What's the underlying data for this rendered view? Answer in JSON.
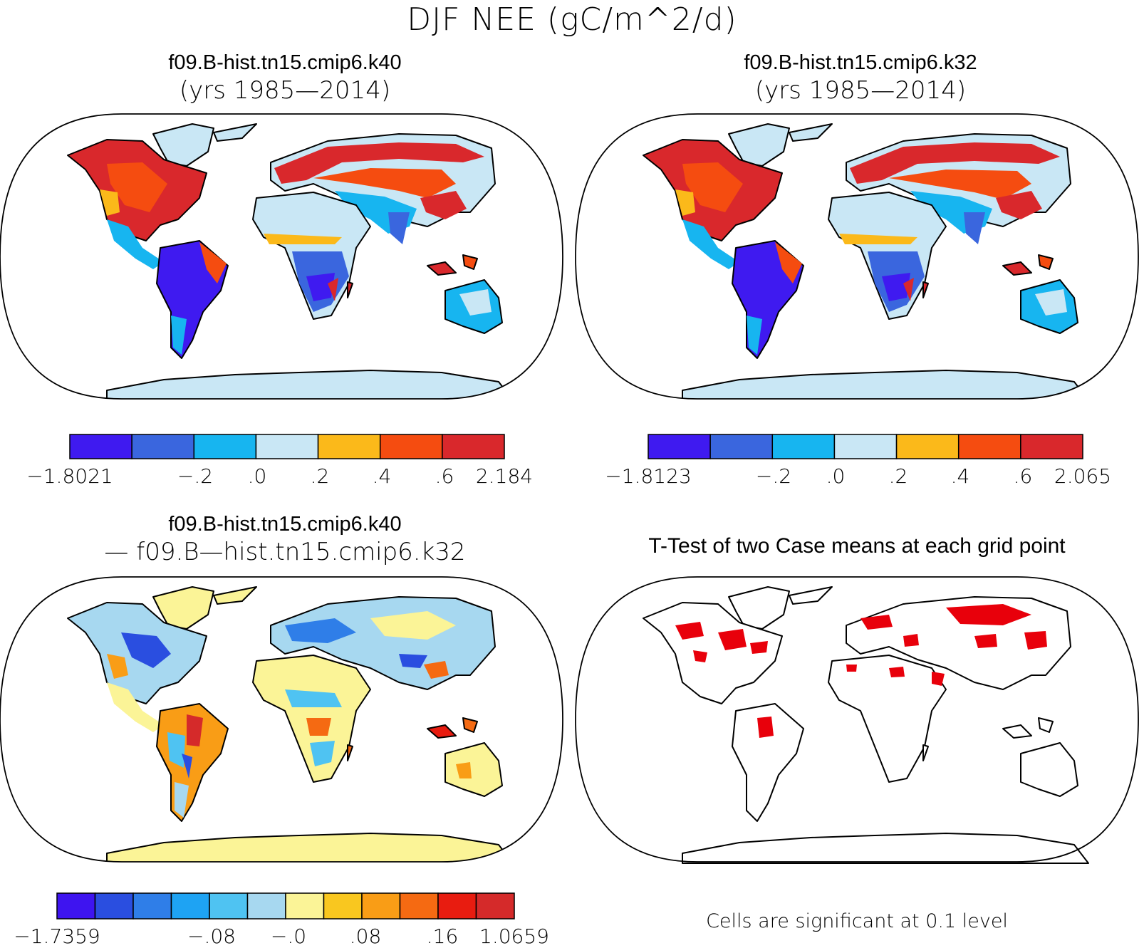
{
  "title": "DJF NEE (gC/m^2/d)",
  "panels": {
    "top_left": {
      "case": "f09.B-hist.tn15.cmip6.k40",
      "years": "(yrs 1985—2014)"
    },
    "top_right": {
      "case": "f09.B-hist.tn15.cmip6.k32",
      "years": "(yrs 1985—2014)"
    },
    "bottom_left": {
      "case": "f09.B-hist.tn15.cmip6.k40",
      "minus": "— f09.B—hist.tn15.cmip6.k32"
    },
    "bottom_right": {
      "title": "T-Test of two Case means at each grid point",
      "footnote": "Cells are significant at 0.1 level"
    }
  },
  "colorbars": {
    "top_left": {
      "colors": [
        "#3f1af0",
        "#3a66de",
        "#17b5f0",
        "#c9e7f5",
        "#fbb91a",
        "#f54c10",
        "#d9282c"
      ],
      "tick_labels": [
        "−1.8021",
        "−.2",
        ".0",
        ".2",
        ".4",
        ".6",
        "2.184"
      ]
    },
    "top_right": {
      "colors": [
        "#3f1af0",
        "#3a66de",
        "#17b5f0",
        "#c9e7f5",
        "#fbb91a",
        "#f54c10",
        "#d9282c"
      ],
      "tick_labels": [
        "−1.8123",
        "−.2",
        ".0",
        ".2",
        ".4",
        ".6",
        "2.065"
      ]
    },
    "bottom_left": {
      "colors": [
        "#3e14f0",
        "#2a4ee0",
        "#2f7ee8",
        "#1ea3f3",
        "#4fc3f2",
        "#a7d8f0",
        "#fbf497",
        "#f9c71f",
        "#f99d16",
        "#f56a12",
        "#e81c10",
        "#d52a2a"
      ],
      "tick_labels": [
        "−1.7359",
        "−.08",
        "−.0",
        ".08",
        ".16",
        "1.0659"
      ]
    }
  },
  "map_colors": {
    "uptake_strong": "#3f1af0",
    "uptake_mid": "#3a66de",
    "uptake_light": "#17b5f0",
    "near_zero": "#c9e7f5",
    "source_light": "#fbb91a",
    "source_mid": "#f54c10",
    "source_strong": "#d9282c",
    "diff_neutral": "#fbf497",
    "significant": "#e8000b"
  }
}
